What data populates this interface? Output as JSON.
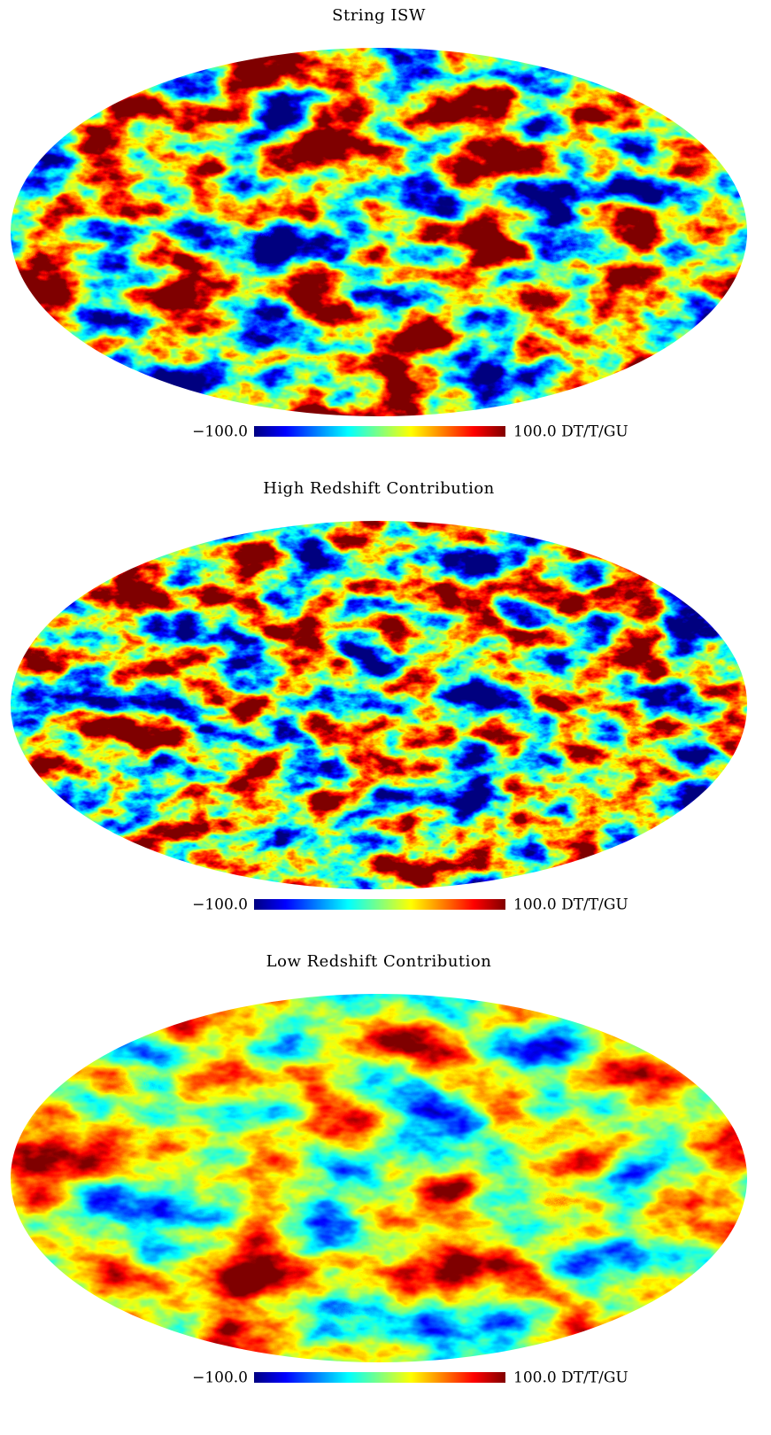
{
  "panels": [
    {
      "title": "String ISW",
      "colorbar": {
        "min_label": "−100.0",
        "max_label": "100.0 DT/T/GU"
      }
    },
    {
      "title": "High Redshift Contribution",
      "colorbar": {
        "min_label": "−100.0",
        "max_label": "100.0 DT/T/GU"
      }
    },
    {
      "title": "Low Redshift Contribution",
      "colorbar": {
        "min_label": "−100.0",
        "max_label": "100.0 DT/T/GU"
      }
    }
  ]
}
